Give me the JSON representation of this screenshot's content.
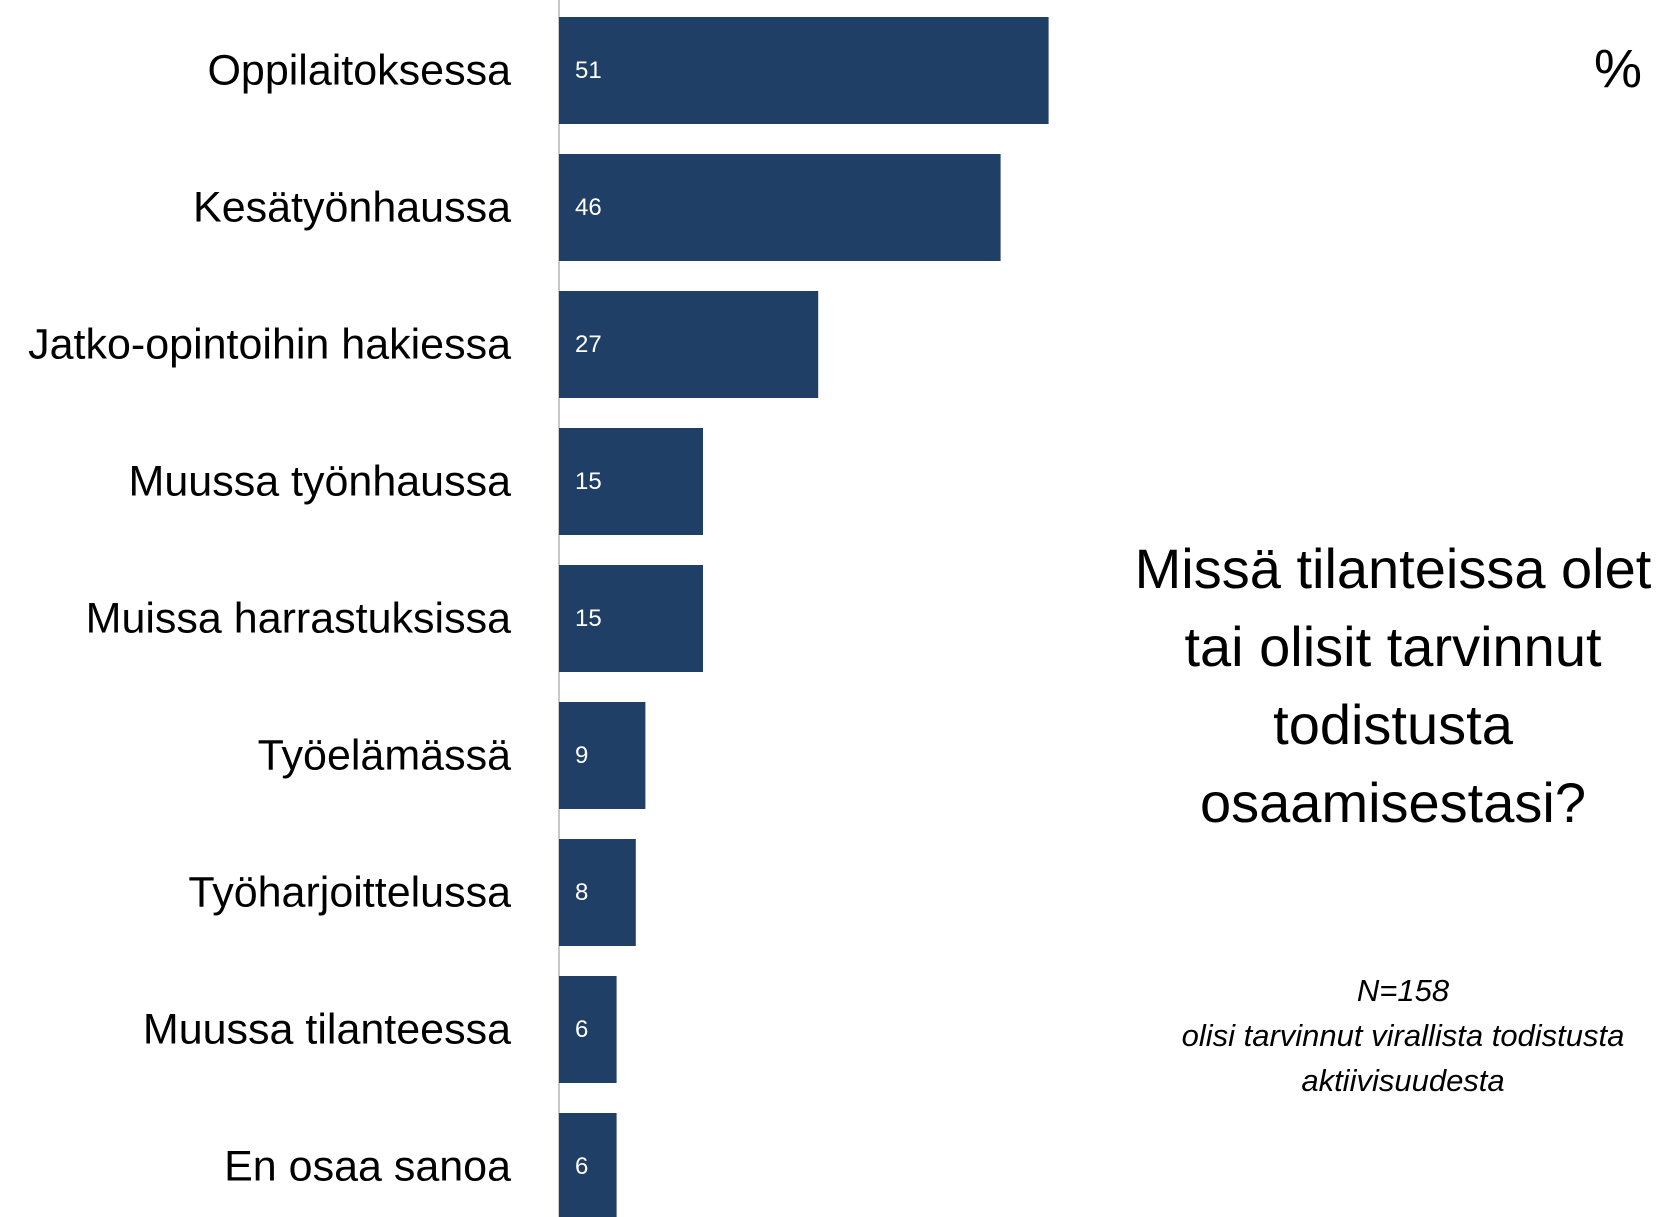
{
  "colors": {
    "bar": "#203f66",
    "axis": "#c8c8c8",
    "label": "#000000",
    "value_label": "#ffffff"
  },
  "unit_label": "%",
  "question": [
    "Missä tilanteissa olet",
    "tai olisit tarvinnut",
    "todistusta",
    "osaamisestasi?"
  ],
  "note": {
    "n": "N=158",
    "line1": "olisi tarvinnut virallista todistusta",
    "line2": "aktiivisuudesta"
  },
  "chart_data": {
    "type": "bar",
    "orientation": "horizontal",
    "categories": [
      "Oppilaitoksessa",
      "Kesätyönhaussa",
      "Jatko-opintoihin hakiessa",
      "Muussa työnhaussa",
      "Muissa harrastuksissa",
      "Työelämässä",
      "Työharjoittelussa",
      "Muussa tilanteessa",
      "En osaa sanoa"
    ],
    "values": [
      51,
      46,
      27,
      15,
      15,
      9,
      8,
      6,
      6
    ],
    "data_labels": true,
    "grid": false,
    "legend": "none"
  }
}
